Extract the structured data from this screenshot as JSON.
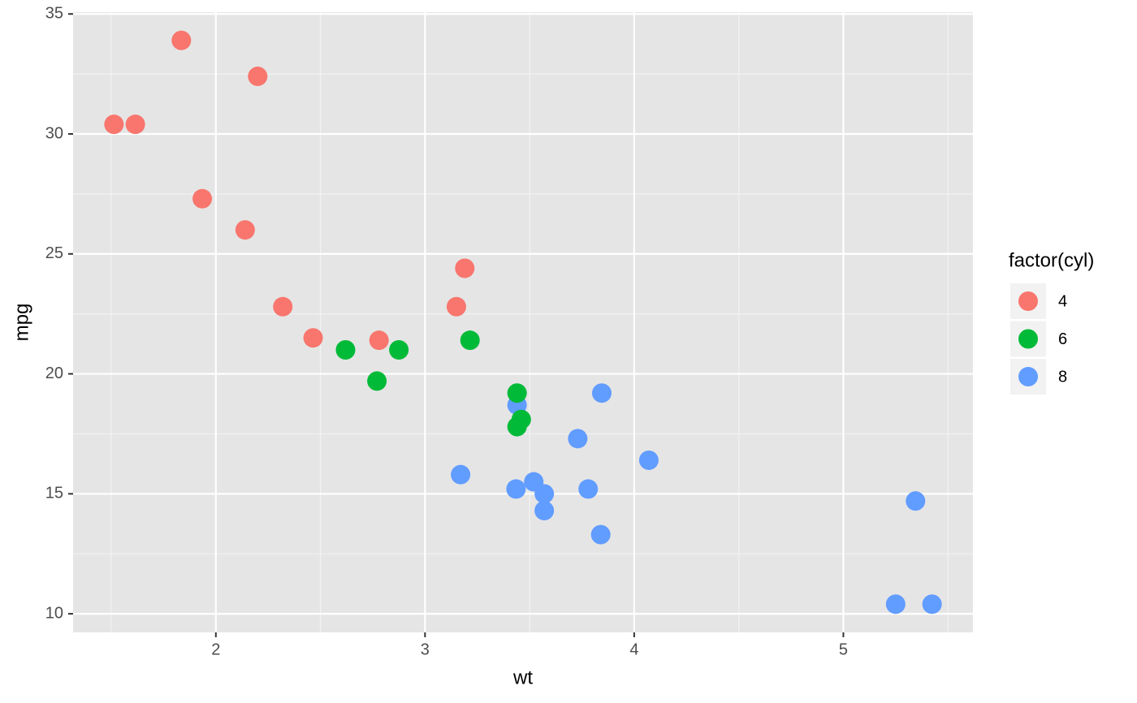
{
  "chart_data": {
    "type": "scatter",
    "x_label": "wt",
    "y_label": "mpg",
    "legend_title": "factor(cyl)",
    "legend_position": "right",
    "xlim": [
      1.31745,
      5.61955
    ],
    "ylim": [
      9.225,
      35.075
    ],
    "xticks": [
      2,
      3,
      4,
      5
    ],
    "yticks": [
      10,
      15,
      20,
      25,
      30,
      35
    ],
    "x_minor_ticks": [
      1.5,
      2.5,
      3.5,
      4.5,
      5.5
    ],
    "y_minor_ticks": [
      12.5,
      17.5,
      22.5,
      27.5,
      32.5
    ],
    "grid": true,
    "background": "#e5e5e5",
    "series": [
      {
        "name": "4",
        "color": "#F8766D",
        "x": [
          2.32,
          3.19,
          3.15,
          2.2,
          1.615,
          1.835,
          2.465,
          1.935,
          2.14,
          1.513,
          2.78
        ],
        "values": [
          22.8,
          24.4,
          22.8,
          32.4,
          30.4,
          33.9,
          21.5,
          27.3,
          26.0,
          30.4,
          21.4
        ]
      },
      {
        "name": "6",
        "color": "#00BA38",
        "x": [
          2.62,
          2.875,
          3.215,
          3.46,
          3.44,
          3.44,
          2.77
        ],
        "values": [
          21.0,
          21.0,
          21.4,
          18.1,
          19.2,
          17.8,
          19.7
        ]
      },
      {
        "name": "8",
        "color": "#619CFF",
        "x": [
          3.44,
          3.57,
          4.07,
          3.73,
          3.78,
          5.25,
          5.424,
          5.345,
          3.52,
          3.435,
          3.84,
          3.845,
          3.17,
          3.57
        ],
        "values": [
          18.7,
          14.3,
          16.4,
          17.3,
          15.2,
          10.4,
          10.4,
          14.7,
          15.5,
          15.2,
          13.3,
          19.2,
          15.8,
          15.0
        ]
      }
    ]
  }
}
